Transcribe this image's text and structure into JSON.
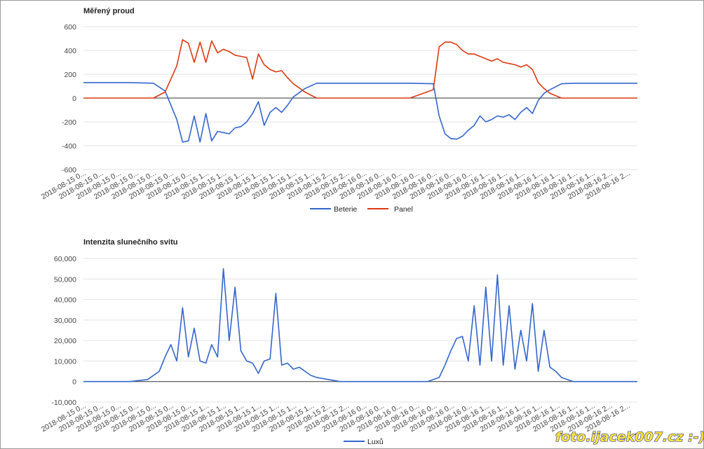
{
  "watermark": "foto.ijacek007.cz :-)",
  "chart_data": [
    {
      "type": "line",
      "title": "Měřený proud",
      "xlabel": "",
      "ylabel": "",
      "ylim": [
        -600,
        600
      ],
      "yticks": [
        600,
        400,
        200,
        0,
        -200,
        -400,
        -600
      ],
      "ytick_labels": [
        "600",
        "400",
        "200",
        "0",
        "-200",
        "-400",
        "-600"
      ],
      "xtick_labels": [
        "2018-08-15 0...",
        "2018-08-15 0...",
        "2018-08-15 0...",
        "2018-08-15 0...",
        "2018-08-15 0...",
        "2018-08-15 0...",
        "2018-08-15 0...",
        "2018-08-15 1...",
        "2018-08-15 1...",
        "2018-08-15 1...",
        "2018-08-15 1...",
        "2018-08-15 1...",
        "2018-08-15 1...",
        "2018-08-15 1...",
        "2018-08-15 2...",
        "2018-08-15 2...",
        "2018-08-16 0...",
        "2018-08-16 0...",
        "2018-08-16 0...",
        "2018-08-16 0...",
        "2018-08-16 0...",
        "2018-08-16 0...",
        "2018-08-16 0...",
        "2018-08-16 1...",
        "2018-08-16 1...",
        "2018-08-16 1...",
        "2018-08-16 1...",
        "2018-08-16 1...",
        "2018-08-16 1...",
        "2018-08-16 1...",
        "2018-08-16 2...",
        "2018-08-16 2..."
      ],
      "x": [
        0,
        2,
        4,
        6,
        7,
        8,
        8.5,
        9,
        9.5,
        10,
        10.5,
        11,
        11.5,
        12,
        12.5,
        13,
        13.5,
        14,
        14.5,
        15,
        15.5,
        16,
        16.5,
        17,
        17.5,
        18,
        19,
        20,
        22,
        24,
        26,
        28,
        30,
        30.5,
        31,
        31.5,
        32,
        32.5,
        33,
        33.5,
        34,
        34.5,
        35,
        35.5,
        36,
        36.5,
        37,
        37.5,
        38,
        38.5,
        39,
        39.5,
        40,
        41,
        42,
        44,
        46,
        47.5
      ],
      "series": [
        {
          "name": "Beterie",
          "color": "#3366cc",
          "values": [
            130,
            130,
            130,
            125,
            60,
            -180,
            -370,
            -360,
            -150,
            -370,
            -130,
            -360,
            -280,
            -290,
            -300,
            -250,
            -240,
            -200,
            -130,
            -30,
            -230,
            -120,
            -80,
            -120,
            -60,
            10,
            80,
            125,
            125,
            125,
            125,
            125,
            120,
            -150,
            -300,
            -340,
            -345,
            -320,
            -270,
            -230,
            -150,
            -200,
            -180,
            -150,
            -160,
            -140,
            -180,
            -120,
            -80,
            -130,
            -20,
            40,
            70,
            120,
            125,
            125,
            125,
            125
          ]
        },
        {
          "name": "Panel",
          "color": "#dc3912",
          "values": [
            0,
            0,
            0,
            0,
            50,
            270,
            490,
            460,
            300,
            470,
            300,
            480,
            380,
            410,
            390,
            360,
            350,
            340,
            160,
            370,
            280,
            240,
            220,
            230,
            170,
            120,
            50,
            0,
            0,
            0,
            0,
            0,
            70,
            430,
            470,
            470,
            450,
            400,
            370,
            370,
            350,
            330,
            310,
            330,
            300,
            290,
            280,
            260,
            280,
            240,
            130,
            80,
            40,
            0,
            0,
            0,
            0,
            0
          ]
        }
      ],
      "legend": "bottom"
    },
    {
      "type": "line",
      "title": "Intenzita slunečního svitu",
      "xlabel": "",
      "ylabel": "",
      "ylim": [
        -10000,
        60000
      ],
      "yticks": [
        60000,
        50000,
        40000,
        30000,
        20000,
        10000,
        0,
        -10000
      ],
      "ytick_labels": [
        "60,000",
        "50,000",
        "40,000",
        "30,000",
        "20,000",
        "10,000",
        "0",
        "-10,000"
      ],
      "xtick_labels": [
        "2018-08-15 0...",
        "2018-08-15 0...",
        "2018-08-15 0...",
        "2018-08-15 0...",
        "2018-08-15 0...",
        "2018-08-15 0...",
        "2018-08-15 0...",
        "2018-08-15 1...",
        "2018-08-15 1...",
        "2018-08-15 1...",
        "2018-08-15 1...",
        "2018-08-15 1...",
        "2018-08-15 1...",
        "2018-08-15 1...",
        "2018-08-15 2...",
        "2018-08-15 2...",
        "2018-08-16 0...",
        "2018-08-16 0...",
        "2018-08-16 0...",
        "2018-08-16 0...",
        "2018-08-16 0...",
        "2018-08-16 0...",
        "2018-08-16 0...",
        "2018-08-16 1...",
        "2018-08-16 1...",
        "2018-08-16 1...",
        "2018-08-16 1...",
        "2018-08-16 1...",
        "2018-08-16 1...",
        "2018-08-16 1...",
        "2018-08-16 2...",
        "2018-08-16 2..."
      ],
      "x": [
        0,
        4,
        5.5,
        6.5,
        7,
        7.5,
        8,
        8.5,
        9,
        9.5,
        10,
        10.5,
        11,
        11.5,
        12,
        12.5,
        13,
        13.5,
        14,
        14.5,
        15,
        15.5,
        16,
        16.5,
        17,
        17.5,
        18,
        18.5,
        19,
        19.5,
        20,
        21,
        22,
        24,
        26,
        28,
        29.5,
        30.5,
        31,
        31.5,
        32,
        32.5,
        33,
        33.5,
        34,
        34.5,
        35,
        35.5,
        36,
        36.5,
        37,
        37.5,
        38,
        38.5,
        39,
        39.5,
        40,
        40.5,
        41,
        42,
        44,
        47.5
      ],
      "series": [
        {
          "name": "Luxů",
          "color": "#3366cc",
          "values": [
            0,
            0,
            1000,
            5000,
            12000,
            18000,
            10000,
            36000,
            12000,
            26000,
            10000,
            9000,
            18000,
            12000,
            55000,
            20000,
            46000,
            15000,
            10000,
            9000,
            4000,
            10000,
            11000,
            43000,
            8000,
            9000,
            6000,
            7000,
            5000,
            3000,
            2000,
            1000,
            0,
            0,
            0,
            0,
            0,
            2000,
            8000,
            15000,
            21000,
            22000,
            10000,
            37000,
            8000,
            46000,
            10000,
            52000,
            8000,
            37000,
            6000,
            25000,
            10000,
            38000,
            5000,
            25000,
            7000,
            5000,
            2000,
            0,
            0,
            0
          ]
        }
      ],
      "legend": "bottom"
    }
  ]
}
